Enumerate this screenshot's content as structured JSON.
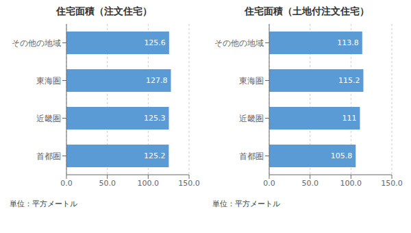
{
  "chart_data": [
    {
      "type": "bar",
      "orientation": "horizontal",
      "title": "住宅面積（注文住宅）",
      "categories": [
        "首都圏",
        "近畿圏",
        "東海圏",
        "その他の地域"
      ],
      "values": [
        125.2,
        125.3,
        127.8,
        125.6
      ],
      "color": "#5B9BD5",
      "xlim": [
        0,
        150
      ],
      "xticks": [
        {
          "value": 0,
          "label": "0.0"
        },
        {
          "value": 50,
          "label": "50.0"
        },
        {
          "value": 100,
          "label": "100.0"
        },
        {
          "value": 150,
          "label": "150.0"
        }
      ],
      "xlabel": "単位：平方メートル",
      "grid": true,
      "data_labels": true
    },
    {
      "type": "bar",
      "orientation": "horizontal",
      "title": "住宅面積（土地付注文住宅）",
      "categories": [
        "首都圏",
        "近畿圏",
        "東海圏",
        "その他の地域"
      ],
      "values": [
        105.8,
        111.0,
        115.2,
        113.8
      ],
      "color": "#5B9BD5",
      "xlim": [
        0,
        150
      ],
      "xticks": [
        {
          "value": 0,
          "label": "0.0"
        },
        {
          "value": 50,
          "label": "50.0"
        },
        {
          "value": 100,
          "label": "100.0"
        },
        {
          "value": 150,
          "label": "150.0"
        }
      ],
      "xlabel": "単位：平方メートル",
      "grid": true,
      "data_labels": true
    }
  ]
}
